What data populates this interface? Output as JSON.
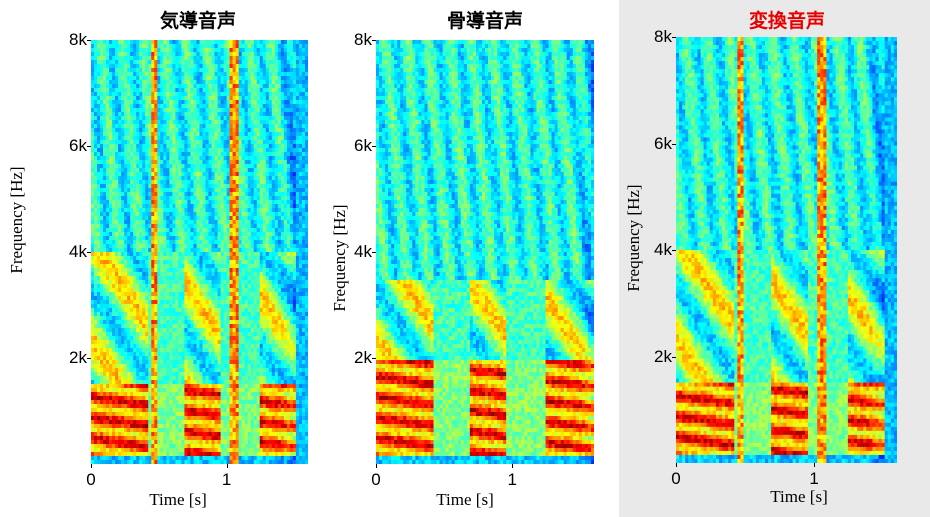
{
  "chart_data": [
    {
      "type": "heatmap",
      "title": "気導音声",
      "title_color": "#000000",
      "xlabel": "Time [s]",
      "ylabel": "Frequency [Hz]",
      "x_ticks": [
        "0",
        "1"
      ],
      "y_ticks": [
        "2k",
        "4k",
        "6k",
        "8k"
      ],
      "xlim": [
        0,
        1.6
      ],
      "ylim": [
        0,
        8000
      ],
      "colormap": "jet",
      "features": {
        "harmonic_band_hz": [
          200,
          1500
        ],
        "formant_band_hz": [
          1500,
          4000
        ],
        "spectrum_cutoff_hz": 4000,
        "bursts_s": [
          0.47,
          1.05
        ],
        "silence_after_s": 1.5
      }
    },
    {
      "type": "heatmap",
      "title": "骨導音声",
      "title_color": "#000000",
      "xlabel": "Time [s]",
      "ylabel": "Frequency [Hz]",
      "x_ticks": [
        "0",
        "1"
      ],
      "y_ticks": [
        "2k",
        "4k",
        "6k",
        "8k"
      ],
      "xlim": [
        0,
        1.6
      ],
      "ylim": [
        0,
        8000
      ],
      "colormap": "jet",
      "features": {
        "harmonic_band_hz": [
          300,
          2000
        ],
        "formant_band_hz": [
          2000,
          3500
        ],
        "spectrum_cutoff_hz": 3500,
        "bursts_s": [],
        "silence_after_s": 1.6
      }
    },
    {
      "type": "heatmap",
      "title": "変換音声",
      "title_color": "#e60000",
      "xlabel": "Time [s]",
      "ylabel": "Frequency [Hz]",
      "x_ticks": [
        "0",
        "1"
      ],
      "y_ticks": [
        "2k",
        "4k",
        "6k",
        "8k"
      ],
      "xlim": [
        0,
        1.6
      ],
      "ylim": [
        0,
        8000
      ],
      "colormap": "jet",
      "features": {
        "harmonic_band_hz": [
          200,
          1500
        ],
        "formant_band_hz": [
          1500,
          4000
        ],
        "spectrum_cutoff_hz": 4000,
        "bursts_s": [
          0.47,
          1.05
        ],
        "silence_after_s": 1.5
      }
    }
  ]
}
